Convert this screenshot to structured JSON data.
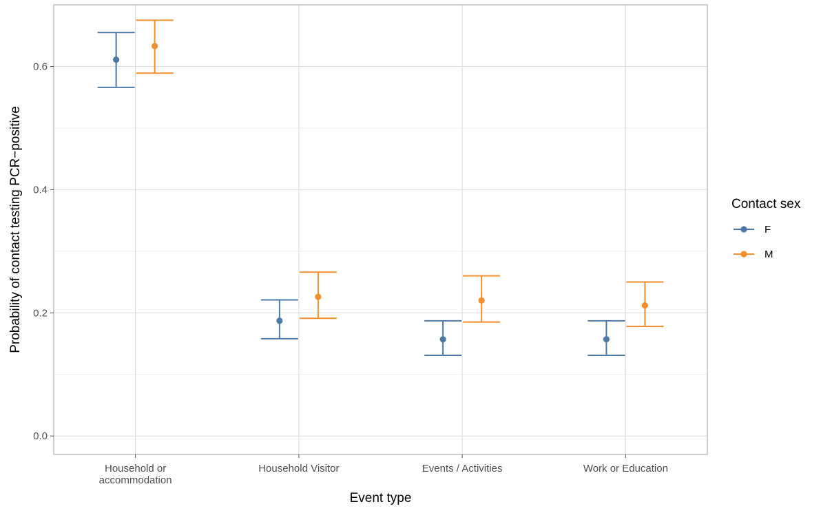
{
  "chart_data": {
    "type": "scatter",
    "title": "",
    "xlabel": "Event type",
    "ylabel": "Probability of contact testing PCR−positive",
    "ylim": [
      -0.03,
      0.7
    ],
    "yticks": [
      0.0,
      0.2,
      0.4,
      0.6
    ],
    "ytick_labels": [
      "0.0",
      "0.2",
      "0.4",
      "0.6"
    ],
    "categories": [
      [
        "Household or",
        "accommodation"
      ],
      [
        "Household Visitor"
      ],
      [
        "Events / Activities"
      ],
      [
        "Work or Education"
      ]
    ],
    "grid": true,
    "legend": {
      "title": "Contact sex",
      "position": "right"
    },
    "series": [
      {
        "name": "F",
        "color": "#4E79A7",
        "values": [
          0.611,
          0.187,
          0.157,
          0.157
        ],
        "lower": [
          0.566,
          0.158,
          0.131,
          0.131
        ],
        "upper": [
          0.655,
          0.221,
          0.187,
          0.187
        ]
      },
      {
        "name": "M",
        "color": "#F28E2B",
        "values": [
          0.633,
          0.226,
          0.22,
          0.212
        ],
        "lower": [
          0.589,
          0.191,
          0.185,
          0.178
        ],
        "upper": [
          0.675,
          0.266,
          0.26,
          0.25
        ]
      }
    ]
  }
}
